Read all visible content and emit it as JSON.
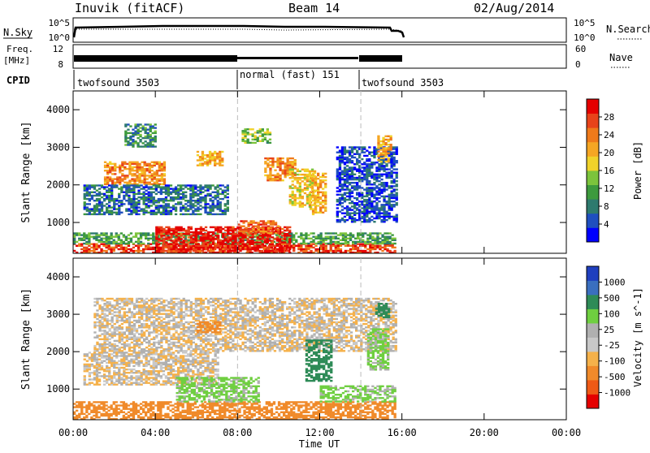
{
  "header": {
    "station": "Inuvik (fitACF)",
    "beam": "Beam 14",
    "date": "02/Aug/2014"
  },
  "top_panels": {
    "nsky_label": "N.Sky",
    "nsky_ticks": [
      "10^5",
      "10^0"
    ],
    "nsearch_label": "N.Search",
    "nsearch_ticks": [
      "10^5",
      "10^0"
    ],
    "freq_label_1": "Freq.",
    "freq_label_2": "[MHz]",
    "freq_ticks": [
      "12",
      "8"
    ],
    "nave_label": "Nave",
    "nave_ticks": [
      "60",
      "0"
    ],
    "cpid_label": "CPID",
    "cpid_segments": [
      {
        "label": "twofsound 3503",
        "start_hour": 0,
        "end_hour": 8
      },
      {
        "label": "normal (fast) 151",
        "start_hour": 8,
        "end_hour": 14
      },
      {
        "label": "twofsound 3503",
        "start_hour": 14,
        "end_hour": 24
      }
    ]
  },
  "x_axis": {
    "label": "Time UT",
    "ticks": [
      "00:00",
      "04:00",
      "08:00",
      "12:00",
      "16:00",
      "20:00",
      "00:00"
    ],
    "tick_hours": [
      0,
      4,
      8,
      12,
      16,
      20,
      24
    ],
    "range_hours": [
      0,
      24
    ]
  },
  "chart_data": [
    {
      "type": "heatmap",
      "name": "power",
      "ylabel": "Slant Range [km]",
      "yticks": [
        1000,
        2000,
        3000,
        4000
      ],
      "ylim": [
        180,
        4500
      ],
      "xlim_hours": [
        0,
        24
      ],
      "data_end_hour": 15.7,
      "colorbar": {
        "label": "Power [dB]",
        "ticks": [
          "28",
          "24",
          "20",
          "16",
          "12",
          "8",
          "4"
        ],
        "colors": [
          "#0000ff",
          "#1f4fbf",
          "#2e7a6e",
          "#3d9a3d",
          "#7cc43c",
          "#f0d22a",
          "#f5a623",
          "#ef7a1a",
          "#e8431a",
          "#e50000"
        ]
      },
      "regions": [
        {
          "h0": 0.0,
          "h1": 15.7,
          "r0": 180,
          "r1": 420,
          "v": 26
        },
        {
          "h0": 0.0,
          "h1": 15.7,
          "r0": 420,
          "r1": 700,
          "v": 12
        },
        {
          "h0": 4.0,
          "h1": 10.5,
          "r0": 180,
          "r1": 900,
          "v": 28
        },
        {
          "h0": 8.0,
          "h1": 10.0,
          "r0": 700,
          "r1": 1050,
          "v": 24
        },
        {
          "h0": 1.5,
          "h1": 4.5,
          "r0": 2000,
          "r1": 2600,
          "v": 22
        },
        {
          "h0": 9.3,
          "h1": 10.8,
          "r0": 2100,
          "r1": 2700,
          "v": 22
        },
        {
          "h0": 11.5,
          "h1": 12.3,
          "r0": 1200,
          "r1": 2300,
          "v": 20
        },
        {
          "h0": 10.5,
          "h1": 11.7,
          "r0": 1400,
          "r1": 2400,
          "v": 18
        },
        {
          "h0": 6.0,
          "h1": 7.3,
          "r0": 2500,
          "r1": 2900,
          "v": 20
        },
        {
          "h0": 2.5,
          "h1": 4.0,
          "r0": 3000,
          "r1": 3600,
          "v": 10
        },
        {
          "h0": 0.5,
          "h1": 7.5,
          "r0": 1200,
          "r1": 2000,
          "v": 8
        },
        {
          "h0": 12.8,
          "h1": 15.7,
          "r0": 1000,
          "r1": 3000,
          "v": 6
        },
        {
          "h0": 14.8,
          "h1": 15.5,
          "r0": 2600,
          "r1": 3300,
          "v": 20
        },
        {
          "h0": 8.2,
          "h1": 9.6,
          "r0": 3100,
          "r1": 3500,
          "v": 14
        }
      ]
    },
    {
      "type": "heatmap",
      "name": "velocity",
      "ylabel": "Slant Range [km]",
      "yticks": [
        1000,
        2000,
        3000,
        4000
      ],
      "ylim": [
        180,
        4500
      ],
      "xlim_hours": [
        0,
        24
      ],
      "data_end_hour": 15.7,
      "colorbar": {
        "label": "Velocity [m s^-1]",
        "ticks": [
          "1000",
          "500",
          "100",
          "25",
          "-25",
          "-100",
          "-500",
          "-1000"
        ],
        "colors": [
          "#e50000",
          "#ef5a16",
          "#f08a2a",
          "#f5b14a",
          "#c8c8c8",
          "#b0b0b0",
          "#6fcf40",
          "#2e8b57",
          "#3a6fbf",
          "#1f3fbf"
        ]
      },
      "regions": [
        {
          "h0": 0.0,
          "h1": 15.7,
          "r0": 180,
          "r1": 650,
          "v": -300
        },
        {
          "h0": 1.0,
          "h1": 15.7,
          "r0": 2000,
          "r1": 3400,
          "v": 0
        },
        {
          "h0": 0.5,
          "h1": 7.0,
          "r0": 1100,
          "r1": 2000,
          "v": 0
        },
        {
          "h0": 11.3,
          "h1": 12.5,
          "r0": 1200,
          "r1": 2300,
          "v": 700
        },
        {
          "h0": 12.0,
          "h1": 15.7,
          "r0": 650,
          "r1": 1100,
          "v": 150
        },
        {
          "h0": 5.0,
          "h1": 9.0,
          "r0": 650,
          "r1": 1300,
          "v": 150
        },
        {
          "h0": 14.3,
          "h1": 15.3,
          "r0": 1500,
          "r1": 2600,
          "v": 150
        },
        {
          "h0": 14.7,
          "h1": 15.4,
          "r0": 2900,
          "r1": 3300,
          "v": 700
        },
        {
          "h0": 6.0,
          "h1": 7.2,
          "r0": 2500,
          "r1": 2800,
          "v": -200
        }
      ]
    }
  ]
}
